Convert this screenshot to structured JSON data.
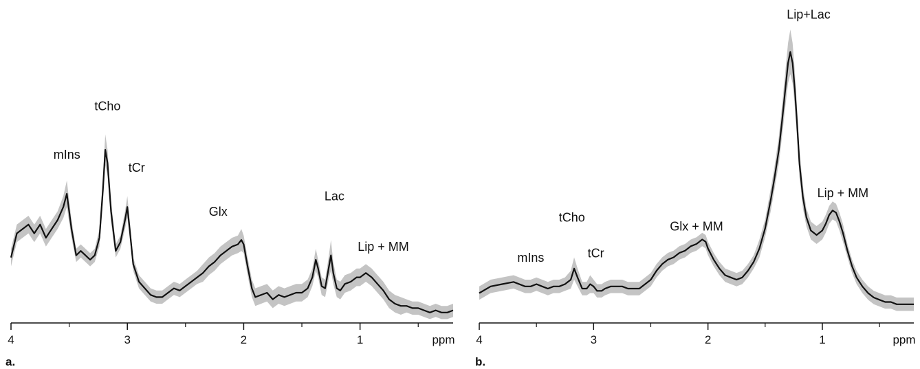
{
  "chart_data": [
    {
      "type": "line",
      "panel_label": "a.",
      "xlabel": "ppm",
      "xlim": [
        4,
        0.2
      ],
      "x_reversed": true,
      "x_ticks": [
        4,
        3,
        2,
        1
      ],
      "x_tick_labels": [
        "4",
        "3",
        "2",
        "1"
      ],
      "band_color": "#c4c4c4",
      "line_color": "#111111",
      "series": [
        {
          "x": [
            4.0,
            3.95,
            3.9,
            3.85,
            3.8,
            3.75,
            3.7,
            3.65,
            3.6,
            3.55,
            3.52,
            3.48,
            3.44,
            3.4,
            3.36,
            3.32,
            3.28,
            3.24,
            3.21,
            3.19,
            3.17,
            3.14,
            3.1,
            3.06,
            3.02,
            3.0,
            2.98,
            2.95,
            2.9,
            2.85,
            2.8,
            2.75,
            2.7,
            2.65,
            2.6,
            2.55,
            2.5,
            2.45,
            2.4,
            2.35,
            2.3,
            2.25,
            2.2,
            2.15,
            2.1,
            2.05,
            2.02,
            2.0,
            1.97,
            1.93,
            1.9,
            1.85,
            1.8,
            1.75,
            1.7,
            1.65,
            1.6,
            1.55,
            1.5,
            1.45,
            1.41,
            1.38,
            1.36,
            1.33,
            1.3,
            1.27,
            1.25,
            1.23,
            1.2,
            1.17,
            1.13,
            1.08,
            1.03,
            1.0,
            0.95,
            0.9,
            0.85,
            0.8,
            0.75,
            0.7,
            0.65,
            0.6,
            0.55,
            0.5,
            0.45,
            0.4,
            0.35,
            0.3,
            0.25,
            0.2
          ],
          "y": [
            0.11,
            0.22,
            0.24,
            0.26,
            0.22,
            0.26,
            0.2,
            0.24,
            0.28,
            0.34,
            0.4,
            0.24,
            0.12,
            0.14,
            0.12,
            0.1,
            0.12,
            0.2,
            0.42,
            0.6,
            0.54,
            0.32,
            0.14,
            0.18,
            0.28,
            0.34,
            0.24,
            0.08,
            0.0,
            -0.03,
            -0.06,
            -0.07,
            -0.07,
            -0.05,
            -0.03,
            -0.04,
            -0.02,
            0.0,
            0.02,
            0.04,
            0.07,
            0.09,
            0.12,
            0.14,
            0.16,
            0.17,
            0.19,
            0.17,
            0.08,
            -0.03,
            -0.07,
            -0.06,
            -0.05,
            -0.08,
            -0.06,
            -0.07,
            -0.06,
            -0.05,
            -0.05,
            -0.03,
            0.02,
            0.1,
            0.06,
            -0.02,
            -0.03,
            0.06,
            0.12,
            0.04,
            -0.03,
            -0.04,
            -0.01,
            0.0,
            0.02,
            0.02,
            0.04,
            0.02,
            -0.01,
            -0.04,
            -0.08,
            -0.1,
            -0.11,
            -0.11,
            -0.12,
            -0.12,
            -0.13,
            -0.14,
            -0.13,
            -0.14,
            -0.14,
            -0.13
          ],
          "band": [
            0.04,
            0.04,
            0.04,
            0.04,
            0.04,
            0.04,
            0.04,
            0.04,
            0.04,
            0.05,
            0.06,
            0.04,
            0.03,
            0.03,
            0.03,
            0.03,
            0.03,
            0.04,
            0.06,
            0.07,
            0.06,
            0.05,
            0.03,
            0.03,
            0.04,
            0.05,
            0.04,
            0.03,
            0.03,
            0.03,
            0.03,
            0.03,
            0.03,
            0.03,
            0.03,
            0.03,
            0.03,
            0.03,
            0.03,
            0.04,
            0.04,
            0.04,
            0.04,
            0.04,
            0.04,
            0.04,
            0.05,
            0.04,
            0.04,
            0.04,
            0.04,
            0.04,
            0.04,
            0.04,
            0.04,
            0.04,
            0.04,
            0.04,
            0.04,
            0.04,
            0.04,
            0.05,
            0.04,
            0.04,
            0.04,
            0.05,
            0.07,
            0.05,
            0.04,
            0.04,
            0.04,
            0.04,
            0.04,
            0.04,
            0.04,
            0.04,
            0.04,
            0.04,
            0.04,
            0.04,
            0.04,
            0.03,
            0.03,
            0.03,
            0.03,
            0.03,
            0.03,
            0.03,
            0.03,
            0.03
          ]
        }
      ],
      "annotations": [
        {
          "text": "mIns",
          "x": 3.52,
          "y": 0.56
        },
        {
          "text": "tCho",
          "x": 3.17,
          "y": 0.78
        },
        {
          "text": "tCr",
          "x": 2.92,
          "y": 0.5
        },
        {
          "text": "Glx",
          "x": 2.22,
          "y": 0.3
        },
        {
          "text": "Lac",
          "x": 1.22,
          "y": 0.37
        },
        {
          "text": "Lip + MM",
          "x": 0.8,
          "y": 0.14
        }
      ]
    },
    {
      "type": "line",
      "panel_label": "b.",
      "xlabel": "ppm",
      "xlim": [
        4,
        0.2
      ],
      "x_reversed": true,
      "x_ticks": [
        4,
        3,
        2,
        1
      ],
      "x_tick_labels": [
        "4",
        "3",
        "2",
        "1"
      ],
      "band_color": "#c4c4c4",
      "line_color": "#111111",
      "series": [
        {
          "x": [
            4.0,
            3.9,
            3.8,
            3.7,
            3.6,
            3.55,
            3.5,
            3.45,
            3.4,
            3.35,
            3.3,
            3.25,
            3.2,
            3.17,
            3.14,
            3.1,
            3.06,
            3.03,
            3.0,
            2.97,
            2.93,
            2.9,
            2.85,
            2.8,
            2.75,
            2.7,
            2.65,
            2.6,
            2.55,
            2.5,
            2.45,
            2.4,
            2.35,
            2.3,
            2.25,
            2.2,
            2.15,
            2.1,
            2.05,
            2.02,
            2.0,
            1.95,
            1.9,
            1.85,
            1.8,
            1.75,
            1.7,
            1.65,
            1.6,
            1.55,
            1.5,
            1.45,
            1.42,
            1.38,
            1.35,
            1.32,
            1.3,
            1.28,
            1.26,
            1.24,
            1.22,
            1.2,
            1.17,
            1.14,
            1.1,
            1.05,
            1.0,
            0.97,
            0.94,
            0.91,
            0.88,
            0.85,
            0.82,
            0.78,
            0.74,
            0.7,
            0.65,
            0.6,
            0.55,
            0.5,
            0.45,
            0.4,
            0.35,
            0.3,
            0.25,
            0.2
          ],
          "y": [
            0.02,
            0.05,
            0.06,
            0.07,
            0.05,
            0.05,
            0.06,
            0.05,
            0.04,
            0.05,
            0.05,
            0.06,
            0.08,
            0.13,
            0.09,
            0.04,
            0.04,
            0.06,
            0.05,
            0.03,
            0.03,
            0.04,
            0.05,
            0.05,
            0.05,
            0.04,
            0.04,
            0.04,
            0.06,
            0.08,
            0.12,
            0.15,
            0.17,
            0.18,
            0.2,
            0.21,
            0.23,
            0.24,
            0.26,
            0.25,
            0.22,
            0.17,
            0.13,
            0.1,
            0.09,
            0.08,
            0.09,
            0.12,
            0.16,
            0.22,
            0.31,
            0.44,
            0.53,
            0.66,
            0.8,
            0.95,
            1.05,
            1.1,
            1.05,
            0.93,
            0.77,
            0.6,
            0.45,
            0.36,
            0.3,
            0.28,
            0.3,
            0.33,
            0.37,
            0.39,
            0.38,
            0.34,
            0.29,
            0.21,
            0.14,
            0.09,
            0.05,
            0.02,
            0.0,
            -0.01,
            -0.02,
            -0.02,
            -0.03,
            -0.03,
            -0.03,
            -0.03
          ],
          "band": [
            0.03,
            0.03,
            0.03,
            0.03,
            0.03,
            0.03,
            0.03,
            0.03,
            0.03,
            0.03,
            0.03,
            0.03,
            0.04,
            0.05,
            0.04,
            0.03,
            0.03,
            0.04,
            0.03,
            0.03,
            0.03,
            0.03,
            0.03,
            0.03,
            0.03,
            0.03,
            0.03,
            0.03,
            0.03,
            0.03,
            0.03,
            0.03,
            0.03,
            0.03,
            0.03,
            0.03,
            0.03,
            0.03,
            0.03,
            0.03,
            0.03,
            0.03,
            0.03,
            0.03,
            0.03,
            0.03,
            0.03,
            0.03,
            0.03,
            0.04,
            0.04,
            0.05,
            0.05,
            0.06,
            0.07,
            0.08,
            0.09,
            0.1,
            0.09,
            0.08,
            0.07,
            0.06,
            0.05,
            0.04,
            0.04,
            0.04,
            0.04,
            0.04,
            0.04,
            0.04,
            0.04,
            0.04,
            0.04,
            0.03,
            0.03,
            0.03,
            0.03,
            0.03,
            0.03,
            0.03,
            0.03,
            0.03,
            0.03,
            0.03,
            0.03,
            0.03
          ]
        }
      ],
      "annotations": [
        {
          "text": "mIns",
          "x": 3.55,
          "y": 0.16
        },
        {
          "text": "tCho",
          "x": 3.19,
          "y": 0.34
        },
        {
          "text": "tCr",
          "x": 2.98,
          "y": 0.18
        },
        {
          "text": "Glx + MM",
          "x": 2.1,
          "y": 0.3
        },
        {
          "text": "Lip+Lac",
          "x": 1.12,
          "y": 1.25
        },
        {
          "text": "Lip + MM",
          "x": 0.82,
          "y": 0.45
        }
      ]
    }
  ]
}
